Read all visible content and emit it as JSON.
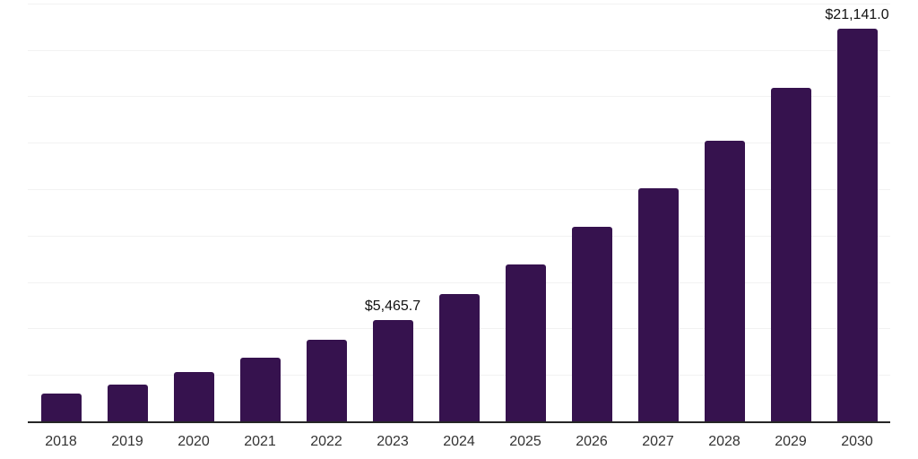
{
  "chart_data": {
    "type": "bar",
    "title": "",
    "xlabel": "",
    "ylabel": "",
    "categories": [
      "2018",
      "2019",
      "2020",
      "2021",
      "2022",
      "2023",
      "2024",
      "2025",
      "2026",
      "2027",
      "2028",
      "2029",
      "2030"
    ],
    "values": [
      1520,
      1990,
      2670,
      3450,
      4370,
      5465.7,
      6870,
      8450,
      10490,
      12550,
      15120,
      17970,
      21141
    ],
    "data_labels": [
      "",
      "",
      "",
      "",
      "",
      "$5,465.7",
      "",
      "",
      "",
      "",
      "",
      "",
      "$21,141.0"
    ],
    "ylim": [
      0,
      22680
    ],
    "gridline_step": 2500,
    "grid": "horizontal",
    "legend_position": "none",
    "colors": {
      "bar": "#36124e",
      "gridline": "#f2f2f2",
      "axis_line": "#262626",
      "tick_label": "#333333",
      "data_label": "#111111",
      "background": "#ffffff"
    }
  }
}
